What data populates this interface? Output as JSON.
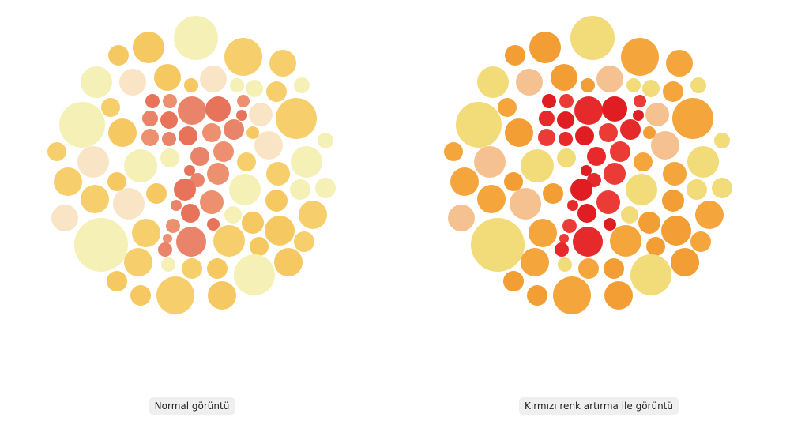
{
  "panels": [
    {
      "caption": "Normal görüntü"
    },
    {
      "caption": "Kırmızı renk artırma ile görüntü"
    }
  ]
}
